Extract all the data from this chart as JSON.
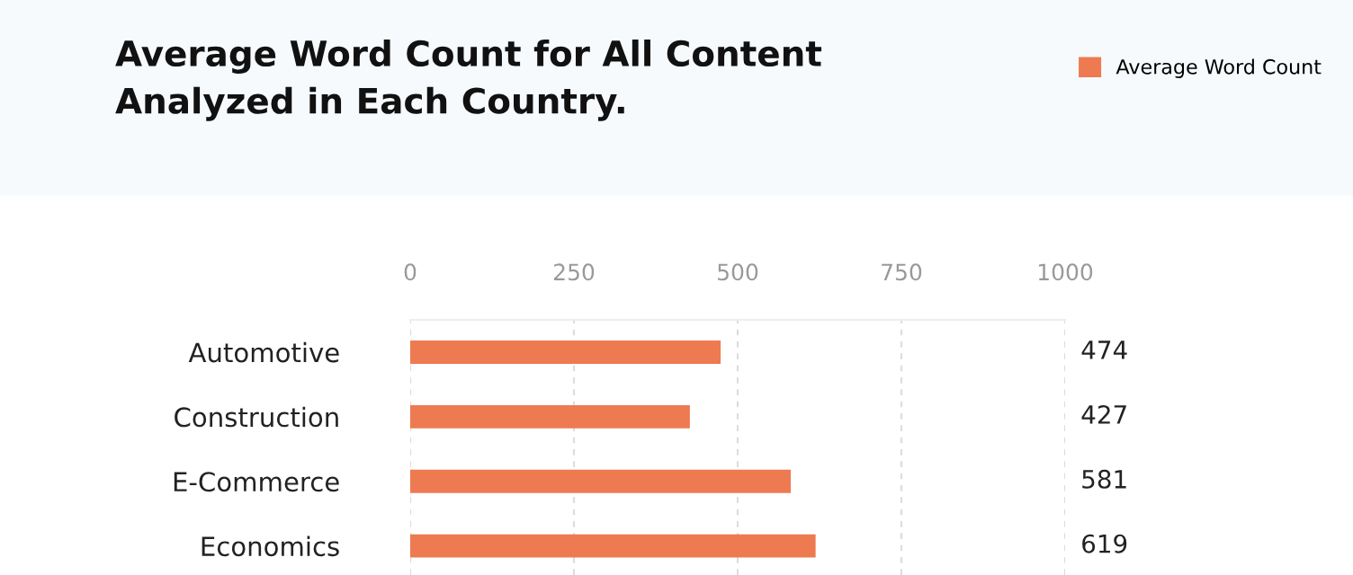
{
  "chart_data": {
    "type": "bar",
    "orientation": "horizontal",
    "title": "Average Word Count for All Content\nAnalyzed in Each Country.",
    "categories": [
      "Automotive",
      "Construction",
      "E-Commerce",
      "Economics"
    ],
    "series": [
      {
        "name": "Average Word Count",
        "color": "#ee7a52",
        "values": [
          474,
          427,
          581,
          619
        ]
      }
    ],
    "xlim": [
      0,
      1000
    ],
    "xticks": [
      0,
      250,
      500,
      750,
      1000
    ],
    "grid": "x",
    "legend": "top right",
    "data_labels": true
  }
}
